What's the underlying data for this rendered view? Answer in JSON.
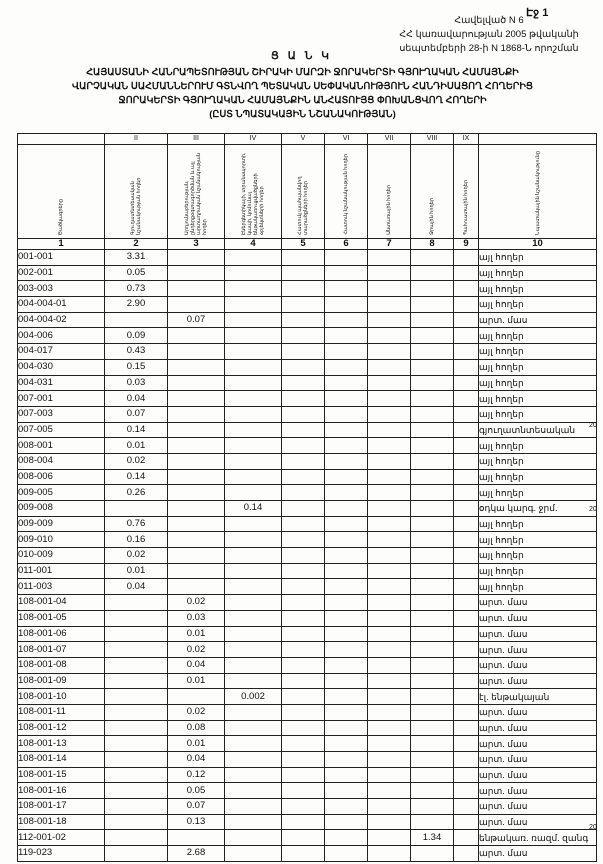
{
  "page_number": "Էջ 1",
  "appendix": {
    "line1": "Հավելված N 6",
    "line2": "ՀՀ կառավարության 2005 թվականի",
    "line3": "սեպտեմբերի 28-ի N 1868-Ն որոշման"
  },
  "list_title": "Ց Ա Ն Կ",
  "heading": {
    "line1": "ՀԱՅԱՍՏԱՆԻ ՀԱՆՐԱՊԵՏՈՒԹՅԱՆ ՇԻՐԱԿԻ ՄԱՐԶԻ ՋՈՐԱԿԵՐՏԻ ԳՅՈՒՂԱԿԱՆ ՀԱՄԱՅՆՔԻ",
    "line2": "ՎԱՐՉԱԿԱՆ ՍԱՀՄԱՆՆԵՐՈՒՄ ԳՏՆՎՈՂ ՊԵՏԱԿԱՆ ՍԵՓԱԿԱՆՈՒԹՅՈՒՆ ՀԱՆԴԻՍԱՑՈՂ ՀՈՂԵՐԻՑ",
    "line3": "ՋՈՐԱԿԵՐՏԻ ԳՅՈՒՂԱԿԱՆ ՀԱՄԱՅՆՔԻՆ ԱՆՀԱՏՈՒՅՑ ՓՈԽԱՆՑՎՈՂ ՀՈՂԵՐԻ",
    "line4": "(ԸՍՏ ՆՊԱՏԱԿԱՅԻՆ ՆՇԱՆԱԿՈՒԹՅԱՆ)"
  },
  "table": {
    "roman": [
      "",
      "II",
      "III",
      "IV",
      "V",
      "VI",
      "VII",
      "VIII",
      "IX",
      ""
    ],
    "headers": [
      "Ծածկագրերը",
      "Գյուղատնտեսական նշանակության հողեր",
      "Արդյունաբերության, ընդերքօգտագործման և այլ արտադրական նշանակության հողեր",
      "Էներգետիկայի, տրանսպորտի, կապի, կոմունալ ենթակառուցվածքների օբյեկտների հողեր",
      "Հատուկ պահպանվող տարածքների հողեր",
      "Հատուկ նշանակության հողեր",
      "Անտառային հողեր",
      "Ջրային հողեր",
      "Պահուստային հողեր",
      "Նպատակային նշանակությունը"
    ],
    "col_numbers": [
      "1",
      "2",
      "3",
      "4",
      "5",
      "6",
      "7",
      "8",
      "9",
      "10"
    ],
    "rows": [
      {
        "code": "001-001",
        "ii": "3.31",
        "iii": "",
        "iv": "",
        "viii": "",
        "purpose": "այլ հողեր"
      },
      {
        "code": "002-001",
        "ii": "0.05",
        "iii": "",
        "iv": "",
        "viii": "",
        "purpose": "այլ հողեր"
      },
      {
        "code": "003-003",
        "ii": "0.73",
        "iii": "",
        "iv": "",
        "viii": "",
        "purpose": "այլ հողեր"
      },
      {
        "code": "004-004-01",
        "ii": "2.90",
        "iii": "",
        "iv": "",
        "viii": "",
        "purpose": "այլ հողեր"
      },
      {
        "code": "004-004-02",
        "ii": "",
        "iii": "0.07",
        "iv": "",
        "viii": "",
        "purpose": "արտ. մաս"
      },
      {
        "code": "004-006",
        "ii": "0.09",
        "iii": "",
        "iv": "",
        "viii": "",
        "purpose": "այլ հողեր"
      },
      {
        "code": "004-017",
        "ii": "0.43",
        "iii": "",
        "iv": "",
        "viii": "",
        "purpose": "այլ հողեր"
      },
      {
        "code": "004-030",
        "ii": "0.15",
        "iii": "",
        "iv": "",
        "viii": "",
        "purpose": "այլ հողեր"
      },
      {
        "code": "004-031",
        "ii": "0.03",
        "iii": "",
        "iv": "",
        "viii": "",
        "purpose": "այլ հողեր"
      },
      {
        "code": "007-001",
        "ii": "0.04",
        "iii": "",
        "iv": "",
        "viii": "",
        "purpose": "այլ հողեր"
      },
      {
        "code": "007-003",
        "ii": "0.07",
        "iii": "",
        "iv": "",
        "viii": "",
        "purpose": "այլ հողեր"
      },
      {
        "code": "007-005",
        "ii": "0.14",
        "iii": "",
        "iv": "",
        "viii": "",
        "purpose": "գյուղատնտեսական"
      },
      {
        "code": "008-001",
        "ii": "0.01",
        "iii": "",
        "iv": "",
        "viii": "",
        "purpose": "այլ հողեր"
      },
      {
        "code": "008-004",
        "ii": "0.02",
        "iii": "",
        "iv": "",
        "viii": "",
        "purpose": "այլ հողեր"
      },
      {
        "code": "008-006",
        "ii": "0.14",
        "iii": "",
        "iv": "",
        "viii": "",
        "purpose": "այլ հողեր"
      },
      {
        "code": "009-005",
        "ii": "0.26",
        "iii": "",
        "iv": "",
        "viii": "",
        "purpose": "այլ հողեր"
      },
      {
        "code": "009-008",
        "ii": "",
        "iii": "",
        "iv": "0.14",
        "viii": "",
        "purpose": "օդկա կարգ. ջրմ."
      },
      {
        "code": "009-009",
        "ii": "0.76",
        "iii": "",
        "iv": "",
        "viii": "",
        "purpose": "այլ հողեր"
      },
      {
        "code": "009-010",
        "ii": "0.16",
        "iii": "",
        "iv": "",
        "viii": "",
        "purpose": "այլ հողեր"
      },
      {
        "code": "010-009",
        "ii": "0.02",
        "iii": "",
        "iv": "",
        "viii": "",
        "purpose": "այլ հողեր"
      },
      {
        "code": "011-001",
        "ii": "0.01",
        "iii": "",
        "iv": "",
        "viii": "",
        "purpose": "այլ հողեր"
      },
      {
        "code": "011-003",
        "ii": "0.04",
        "iii": "",
        "iv": "",
        "viii": "",
        "purpose": "այլ հողեր"
      },
      {
        "code": "108-001-04",
        "ii": "",
        "iii": "0.02",
        "iv": "",
        "viii": "",
        "purpose": "արտ. մաս"
      },
      {
        "code": "108-001-05",
        "ii": "",
        "iii": "0.03",
        "iv": "",
        "viii": "",
        "purpose": "արտ. մաս"
      },
      {
        "code": "108-001-06",
        "ii": "",
        "iii": "0.01",
        "iv": "",
        "viii": "",
        "purpose": "արտ. մաս"
      },
      {
        "code": "108-001-07",
        "ii": "",
        "iii": "0.02",
        "iv": "",
        "viii": "",
        "purpose": "արտ. մաս"
      },
      {
        "code": "108-001-08",
        "ii": "",
        "iii": "0.04",
        "iv": "",
        "viii": "",
        "purpose": "արտ. մաս"
      },
      {
        "code": "108-001-09",
        "ii": "",
        "iii": "0.01",
        "iv": "",
        "viii": "",
        "purpose": "արտ. մաս"
      },
      {
        "code": "108-001-10",
        "ii": "",
        "iii": "",
        "iv": "0.002",
        "viii": "",
        "purpose": "էլ. ենթակայան"
      },
      {
        "code": "108-001-11",
        "ii": "",
        "iii": "0.02",
        "iv": "",
        "viii": "",
        "purpose": "արտ. մաս"
      },
      {
        "code": "108-001-12",
        "ii": "",
        "iii": "0.08",
        "iv": "",
        "viii": "",
        "purpose": "արտ. մաս"
      },
      {
        "code": "108-001-13",
        "ii": "",
        "iii": "0.01",
        "iv": "",
        "viii": "",
        "purpose": "արտ. մաս"
      },
      {
        "code": "108-001-14",
        "ii": "",
        "iii": "0.04",
        "iv": "",
        "viii": "",
        "purpose": "արտ. մաս"
      },
      {
        "code": "108-001-15",
        "ii": "",
        "iii": "0.12",
        "iv": "",
        "viii": "",
        "purpose": "արտ. մաս"
      },
      {
        "code": "108-001-16",
        "ii": "",
        "iii": "0.05",
        "iv": "",
        "viii": "",
        "purpose": "արտ. մաս"
      },
      {
        "code": "108-001-17",
        "ii": "",
        "iii": "0.07",
        "iv": "",
        "viii": "",
        "purpose": "արտ. մաս"
      },
      {
        "code": "108-001-18",
        "ii": "",
        "iii": "0.13",
        "iv": "",
        "viii": "",
        "purpose": "արտ. մաս"
      },
      {
        "code": "112-001-02",
        "ii": "",
        "iii": "",
        "iv": "",
        "viii": "1.34",
        "purpose": "ենթակառ. ռազմ. զանգ"
      },
      {
        "code": "119-023",
        "ii": "",
        "iii": "2.68",
        "iv": "",
        "viii": "",
        "purpose": "արտ. մաս"
      }
    ]
  },
  "margin_mark": "20"
}
